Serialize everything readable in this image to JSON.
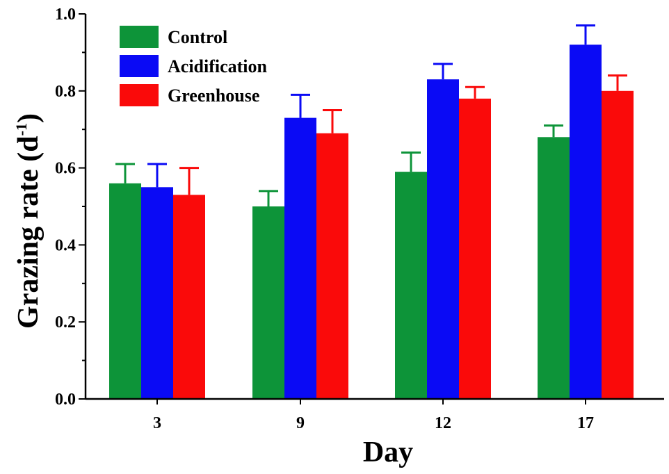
{
  "chart_data": {
    "type": "bar",
    "categories": [
      "3",
      "9",
      "12",
      "17"
    ],
    "series": [
      {
        "name": "Control",
        "color": "#0d9439",
        "values": [
          0.56,
          0.5,
          0.59,
          0.68
        ],
        "errors": [
          0.05,
          0.04,
          0.05,
          0.03
        ]
      },
      {
        "name": "Acidification",
        "color": "#0a0af5",
        "values": [
          0.55,
          0.73,
          0.83,
          0.92
        ],
        "errors": [
          0.06,
          0.06,
          0.04,
          0.05
        ]
      },
      {
        "name": "Greenhouse",
        "color": "#fa0a0a",
        "values": [
          0.53,
          0.69,
          0.78,
          0.8
        ],
        "errors": [
          0.07,
          0.06,
          0.03,
          0.04
        ]
      }
    ],
    "xlabel": "Day",
    "ylabel": "Grazing rate (d",
    "ylabel_superscript": "-1",
    "ylabel_close": ")",
    "ylim": [
      0.0,
      1.0
    ],
    "yticks": [
      "0.0",
      "0.2",
      "0.4",
      "0.6",
      "0.8",
      "1.0"
    ],
    "legend_position": "top-left",
    "grid": false
  }
}
